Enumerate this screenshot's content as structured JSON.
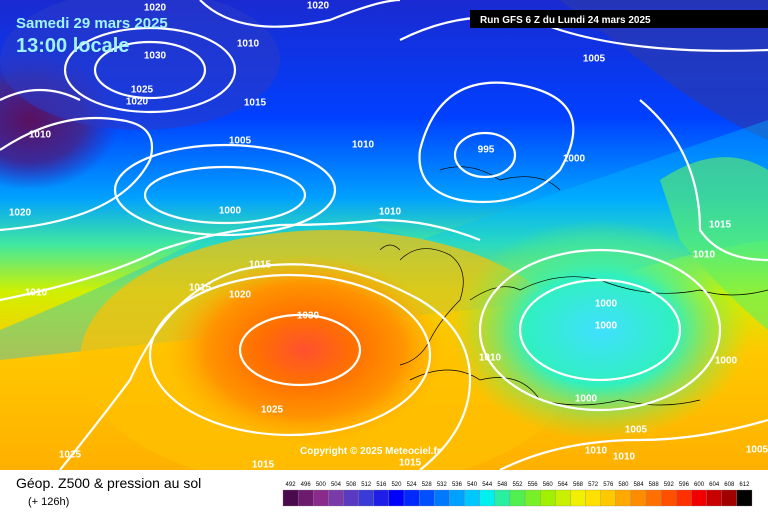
{
  "header": {
    "date": "Samedi 29 mars 2025",
    "time": "13:00 locale",
    "run": "Run GFS 6 Z du Lundi 24 mars 2025"
  },
  "copyright": "Copyright © 2025 Meteociel.fr",
  "caption": {
    "title": "Géop. Z500 & pression au sol",
    "lead": "(+ 126h)"
  },
  "isobar_labels": [
    "1020",
    "1020",
    "1010",
    "1030",
    "1025",
    "1020",
    "1015",
    "1010",
    "1005",
    "1010",
    "995",
    "1000",
    "1005",
    "1020",
    "1000",
    "1010",
    "1015",
    "1010",
    "1015",
    "1015",
    "1020",
    "1010",
    "1000",
    "1030",
    "1000",
    "1010",
    "1000",
    "1000",
    "1025",
    "1005",
    "1010",
    "1010",
    "1025",
    "1015",
    "1015",
    "1005"
  ],
  "legend": {
    "values": [
      492,
      496,
      500,
      504,
      508,
      512,
      516,
      520,
      524,
      528,
      532,
      536,
      540,
      544,
      548,
      552,
      556,
      560,
      564,
      568,
      572,
      576,
      580,
      584,
      588,
      592,
      596,
      600,
      604,
      608,
      612
    ],
    "colors": [
      "#4b0a4b",
      "#6e1a6e",
      "#8a2a8a",
      "#7a3aa8",
      "#5a3ac0",
      "#3a3ad8",
      "#1e1ee6",
      "#0000ff",
      "#0028ff",
      "#0050ff",
      "#0078ff",
      "#00a0ff",
      "#00c8ff",
      "#00f0f0",
      "#28f0a0",
      "#50f050",
      "#78f028",
      "#a0f000",
      "#c8f000",
      "#f0f000",
      "#ffe000",
      "#ffc800",
      "#ffa800",
      "#ff8c00",
      "#ff7000",
      "#ff5000",
      "#ff3000",
      "#f00000",
      "#c80000",
      "#a00000",
      "#000000"
    ]
  }
}
